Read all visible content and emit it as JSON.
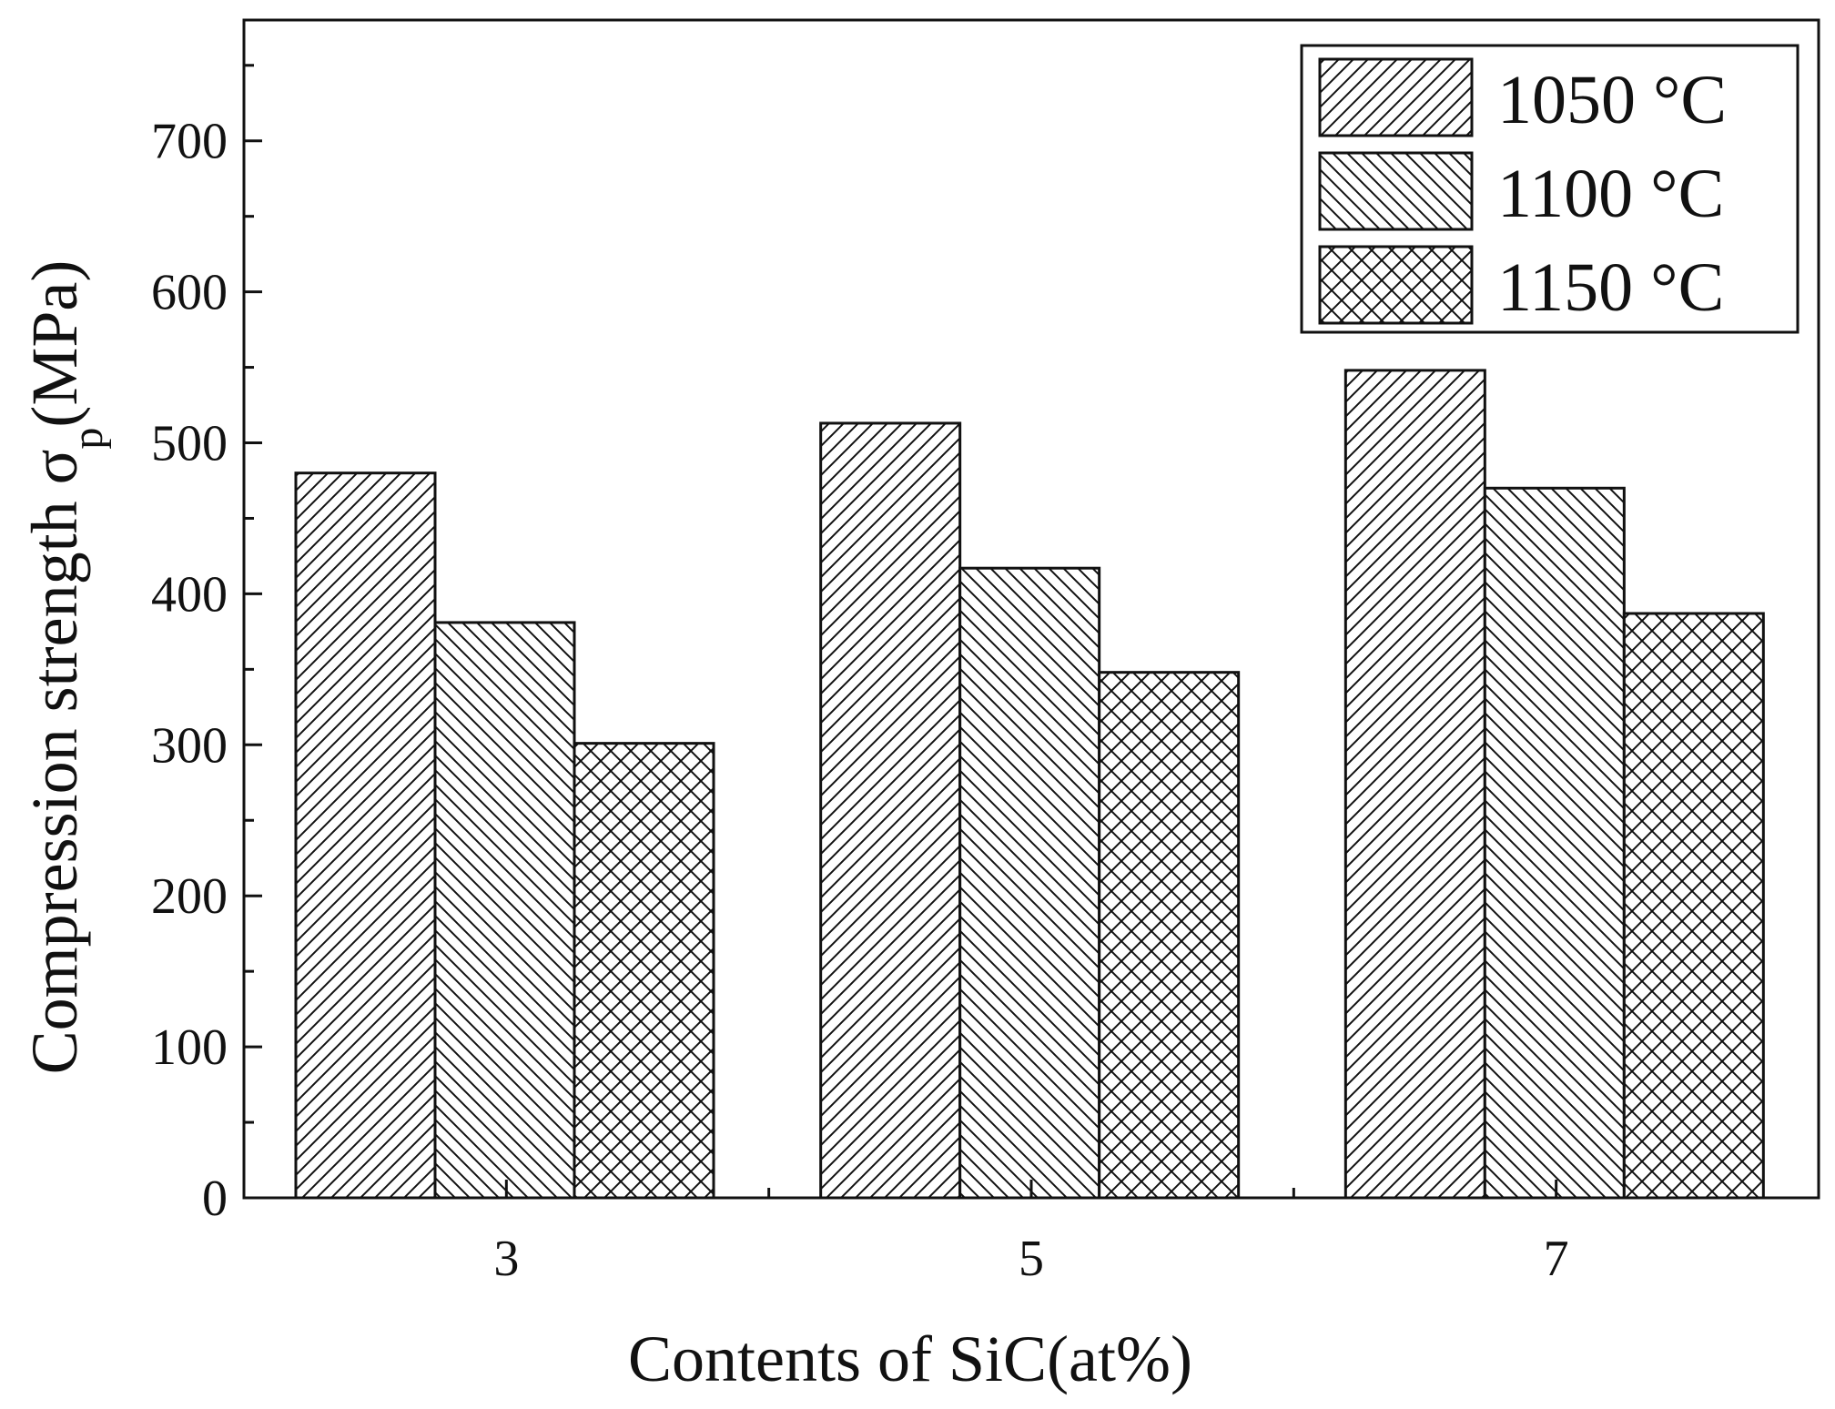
{
  "chart_data": {
    "type": "bar",
    "categories": [
      "3",
      "5",
      "7"
    ],
    "series": [
      {
        "name": "1050 °C",
        "pattern": "diagonal-up",
        "values": [
          480,
          513,
          548
        ]
      },
      {
        "name": "1100 °C",
        "pattern": "diagonal-down",
        "values": [
          381,
          417,
          470
        ]
      },
      {
        "name": "1150 °C",
        "pattern": "cross-hatch",
        "values": [
          301,
          348,
          387
        ]
      }
    ],
    "xlabel": "Contents of SiC(at%)",
    "ylabel": {
      "main": "Compression strength σ",
      "subscript": "p",
      "unit": "(MPa)"
    },
    "ylim": [
      0,
      780
    ],
    "yticks": [
      0,
      100,
      200,
      300,
      400,
      500,
      600,
      700
    ],
    "grid": false,
    "legend_position": "top-right",
    "colors": {
      "line": "#111111",
      "fill": "#ffffff"
    }
  }
}
